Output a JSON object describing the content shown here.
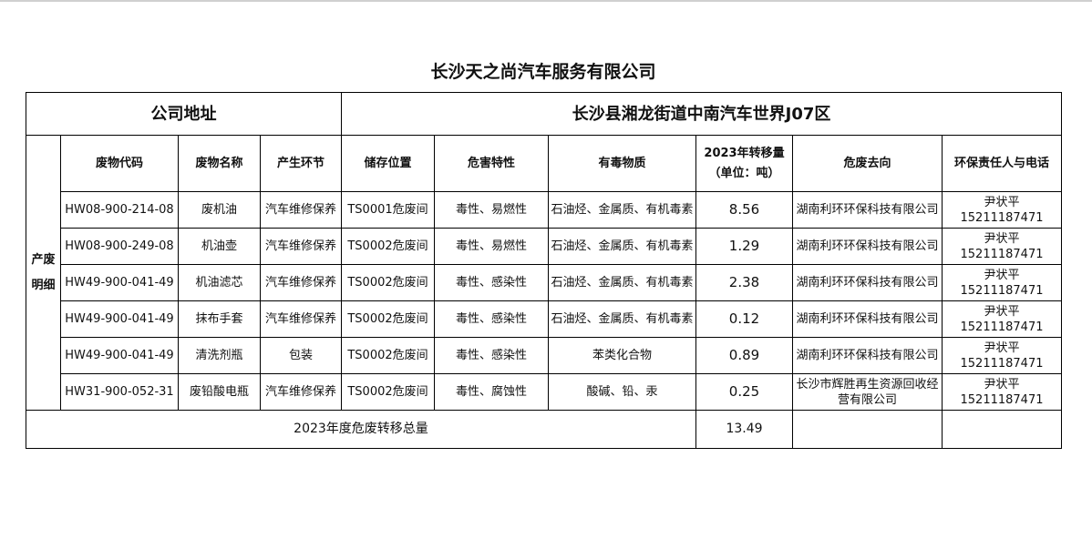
{
  "title": "长沙天之尚汽车服务有限公司",
  "address_label": "公司地址",
  "address": "长沙县湘龙街道中南汽车世界J07区",
  "side_label": "产废明细",
  "headers": [
    "废物代码",
    "废物名称",
    "产生环节",
    "储存位置",
    "危害特性",
    "有毒物质",
    "2023年转移量",
    "（单位：吨）",
    "危废去向",
    "环保责任人与电话"
  ],
  "rows": [
    {
      "code": "HW08-900-214-08",
      "name": "废机油",
      "stage": "汽车维修保养",
      "storage": "TS0001危废间",
      "hazard": "毒性、易燃性",
      "toxic": "石油烃、金属质、有机毒素",
      "amount": "8.56",
      "dest": "湖南利环环保科技有限公司",
      "person": "尹状平",
      "phone": "15211187471"
    },
    {
      "code": "HW08-900-249-08",
      "name": "机油壶",
      "stage": "汽车维修保养",
      "storage": "TS0002危废间",
      "hazard": "毒性、易燃性",
      "toxic": "石油烃、金属质、有机毒素",
      "amount": "1.29",
      "dest": "湖南利环环保科技有限公司",
      "person": "尹状平",
      "phone": "15211187471"
    },
    {
      "code": "HW49-900-041-49",
      "name": "机油滤芯",
      "stage": "汽车维修保养",
      "storage": "TS0002危废间",
      "hazard": "毒性、感染性",
      "toxic": "石油烃、金属质、有机毒素",
      "amount": "2.38",
      "dest": "湖南利环环保科技有限公司",
      "person": "尹状平",
      "phone": "15211187471"
    },
    {
      "code": "HW49-900-041-49",
      "name": "抹布手套",
      "stage": "汽车维修保养",
      "storage": "TS0002危废间",
      "hazard": "毒性、感染性",
      "toxic": "石油烃、金属质、有机毒素",
      "amount": "0.12",
      "dest": "湖南利环环保科技有限公司",
      "person": "尹状平",
      "phone": "15211187471"
    },
    {
      "code": "HW49-900-041-49",
      "name": "清洗剂瓶",
      "stage": "包装",
      "storage": "TS0002危废间",
      "hazard": "毒性、感染性",
      "toxic": "苯类化合物",
      "amount": "0.89",
      "dest": "湖南利环环保科技有限公司",
      "person": "尹状平",
      "phone": "15211187471"
    },
    {
      "code": "HW31-900-052-31",
      "name": "废铅酸电瓶",
      "stage": "汽车维修保养",
      "storage": "TS0002危废间",
      "hazard": "毒性、腐蚀性",
      "toxic": "酸碱、铅、汞",
      "amount": "0.25",
      "dest": "长沙市辉胜再生资源回收经营有限公司",
      "person": "尹状平",
      "phone": "15211187471"
    }
  ],
  "total_label": "2023年度危废转移总量",
  "total": "13.49"
}
